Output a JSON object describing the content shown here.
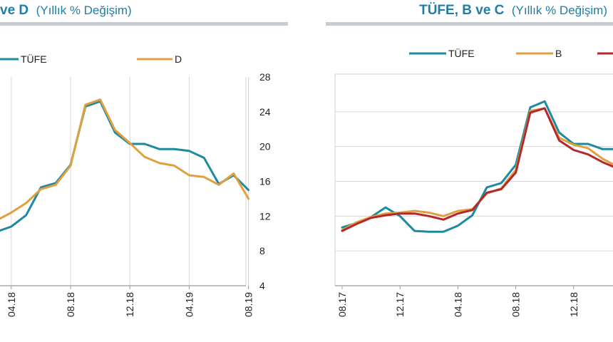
{
  "chart_data": [
    {
      "type": "line",
      "title_bold": "ve D",
      "title_rest": "(Yıllık % Değişim)",
      "xlabel": "",
      "ylabel": "",
      "x_tick_labels": [
        "04.18",
        "08.18",
        "12.18",
        "04.19",
        "08.19"
      ],
      "y_ticks": [
        4,
        8,
        12,
        16,
        20,
        24,
        28
      ],
      "ylim": [
        4,
        28
      ],
      "grid": "vertical",
      "legend": "top",
      "series": [
        {
          "name": "TÜFE",
          "color": "#1e8aa0",
          "values": [
            10.2,
            10.8,
            12.1,
            15.3,
            15.8,
            17.9,
            24.6,
            25.2,
            21.6,
            20.3,
            20.3,
            19.7,
            19.7,
            19.5,
            18.7,
            15.7,
            16.7,
            15.0
          ]
        },
        {
          "name": "D",
          "color": "#e0a040",
          "values": [
            11.5,
            12.4,
            13.5,
            15.1,
            15.6,
            17.8,
            24.8,
            25.4,
            21.9,
            20.4,
            18.8,
            18.1,
            17.8,
            16.7,
            16.5,
            15.6,
            16.9,
            14.0
          ]
        }
      ]
    },
    {
      "type": "line",
      "title_bold": "TÜFE, B ve C",
      "title_rest": "(Yıllık % Değişim)",
      "xlabel": "",
      "ylabel": "",
      "x_tick_labels": [
        "08.17",
        "12.17",
        "04.18",
        "08.18",
        "12.18"
      ],
      "grid": "horizontal",
      "legend": "top",
      "series": [
        {
          "name": "TÜFE",
          "color": "#1e8aa0",
          "values": [
            10.7,
            11.2,
            11.9,
            13.0,
            12.0,
            10.3,
            10.2,
            10.2,
            10.9,
            12.1,
            15.3,
            15.8,
            17.9,
            24.5,
            25.2,
            21.6,
            20.3,
            20.3,
            19.7,
            19.7
          ]
        },
        {
          "name": "B",
          "color": "#e0a040",
          "values": [
            10.4,
            11.3,
            11.9,
            12.3,
            12.4,
            12.6,
            12.4,
            12.0,
            12.6,
            12.8,
            14.6,
            15.2,
            17.3,
            24.1,
            24.4,
            21.0,
            20.2,
            19.8,
            18.6,
            17.7
          ]
        },
        {
          "name": "",
          "color": "#b5282a",
          "values": [
            10.3,
            11.1,
            11.8,
            12.1,
            12.3,
            12.3,
            12.0,
            11.6,
            12.3,
            12.7,
            14.7,
            15.1,
            17.0,
            23.9,
            24.4,
            20.7,
            19.6,
            19.1,
            18.2,
            17.5
          ]
        }
      ]
    }
  ]
}
